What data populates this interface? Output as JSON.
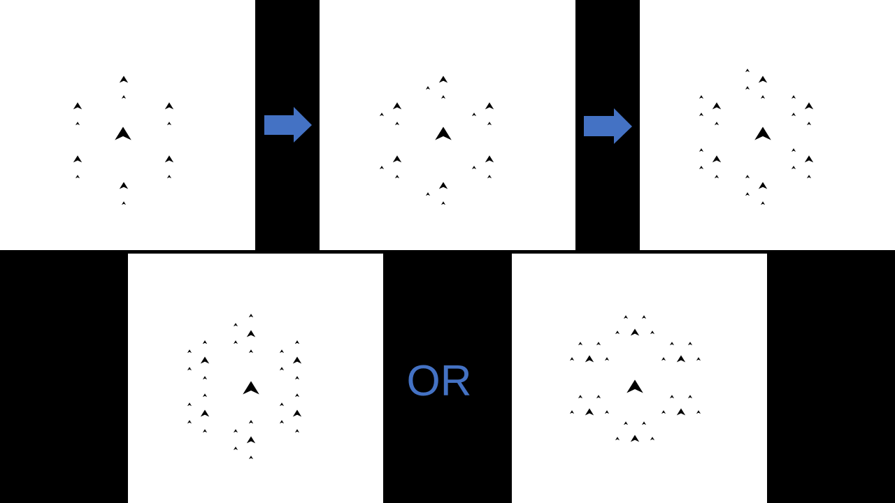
{
  "diagram": {
    "accent_color": "#4472C4",
    "panel_color": "#FFFFFF",
    "background_color": "#000000",
    "arrow_icon": "right-arrow-icon",
    "marker_icon": "arrowhead-icon",
    "separator_text": "OR",
    "panels": [
      {
        "role": "step-1",
        "shape": "hexagonal-arrowhead-pattern"
      },
      {
        "role": "step-2",
        "shape": "hexagonal-arrowhead-pattern"
      },
      {
        "role": "step-3",
        "shape": "hexagonal-arrowhead-pattern"
      },
      {
        "role": "option-a",
        "shape": "hexagonal-arrowhead-pattern"
      },
      {
        "role": "option-b",
        "shape": "hexagonal-arrowhead-pattern"
      }
    ]
  }
}
